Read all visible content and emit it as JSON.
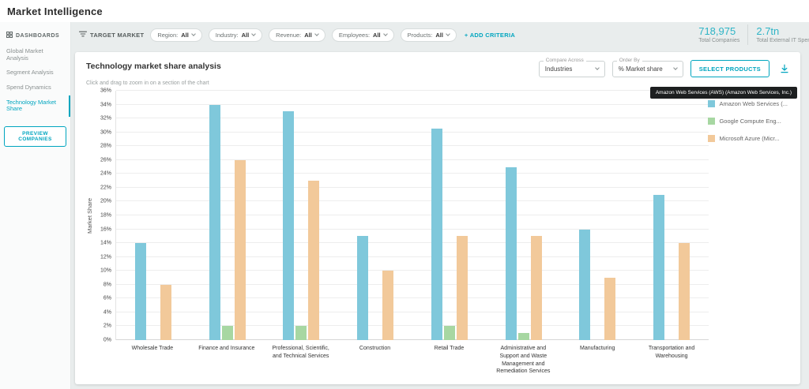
{
  "header": {
    "title": "Market Intelligence"
  },
  "sidebar": {
    "section": "DASHBOARDS",
    "items": [
      {
        "label": "Global Market Analysis",
        "active": false
      },
      {
        "label": "Segment Analysis",
        "active": false
      },
      {
        "label": "Spend Dynamics",
        "active": false
      },
      {
        "label": "Technology Market Share",
        "active": true
      }
    ],
    "preview_button": "PREVIEW COMPANIES"
  },
  "filter_bar": {
    "target_market_label": "TARGET MARKET",
    "filters": [
      {
        "label": "Region:",
        "value": "All"
      },
      {
        "label": "Industry:",
        "value": "All"
      },
      {
        "label": "Revenue:",
        "value": "All"
      },
      {
        "label": "Employees:",
        "value": "All"
      },
      {
        "label": "Products:",
        "value": "All"
      }
    ],
    "add_criteria": "+ ADD CRITERIA"
  },
  "stats": [
    {
      "value": "718,975",
      "label": "Total Companies"
    },
    {
      "value": "2.7tn",
      "label": "Total External IT Spend"
    }
  ],
  "panel": {
    "title": "Technology market share analysis",
    "subtitle": "Click and drag to zoom in on a section of the chart",
    "compare_across": {
      "label": "Compare Across",
      "value": "Industries"
    },
    "order_by": {
      "label": "Order By",
      "value": "% Market share"
    },
    "select_products": "SELECT PRODUCTS",
    "tooltip": "Amazon Web Services (AWS) (Amazon Web Services, Inc.)"
  },
  "legend": [
    {
      "label": "Amazon Web Services (...",
      "color": "#7fc8db"
    },
    {
      "label": "Google Compute Eng...",
      "color": "#a7d7a2"
    },
    {
      "label": "Microsoft Azure (Micr...",
      "color": "#f2c99a"
    }
  ],
  "chart_data": {
    "type": "bar",
    "title": "Technology market share analysis",
    "ylabel": "Market Share",
    "ylim": [
      0,
      36
    ],
    "ytick_step": 2,
    "ytick_suffix": "%",
    "grid": true,
    "legend_position": "right",
    "categories": [
      "Wholesale Trade",
      "Finance and Insurance",
      "Professional, Scientific, and Technical Services",
      "Construction",
      "Retail Trade",
      "Administrative and Support and Waste Management and Remediation Services",
      "Manufacturing",
      "Transportation and Warehousing"
    ],
    "series": [
      {
        "name": "Amazon Web Services (AWS)",
        "color": "#7fc8db",
        "values": [
          14,
          34,
          33,
          15,
          30.5,
          25,
          16,
          21
        ]
      },
      {
        "name": "Google Compute Engine",
        "color": "#a7d7a2",
        "values": [
          0,
          2,
          2,
          0,
          2,
          1,
          0,
          0
        ]
      },
      {
        "name": "Microsoft Azure",
        "color": "#f2c99a",
        "values": [
          8,
          26,
          23,
          10,
          15,
          15,
          9,
          14
        ]
      }
    ]
  }
}
